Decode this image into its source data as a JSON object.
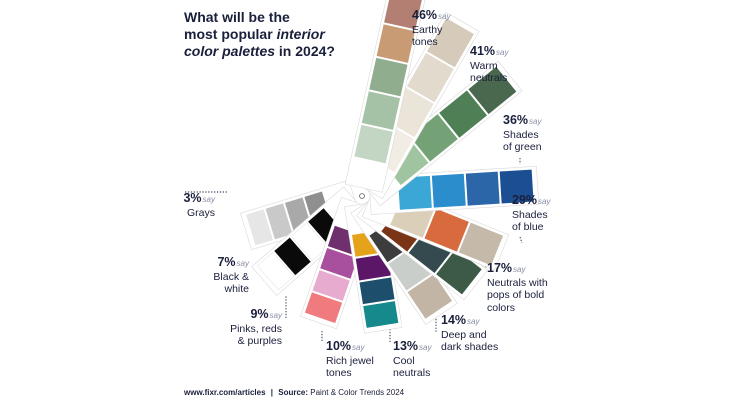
{
  "title": {
    "line1": "What will be the",
    "line2_pre": "most popular ",
    "line2_em": "interior",
    "line3_em": "color palettes",
    "line3_post": " in 2024?"
  },
  "say_word": "say",
  "chart_data": {
    "type": "bar",
    "title": "What will be the most popular interior color palettes in 2024?",
    "unit": "%",
    "categories": [
      "Earthy tones",
      "Warm neutrals",
      "Shades of green",
      "Shades of blue",
      "Neutrals with pops of bold colors",
      "Deep and dark shades",
      "Cool neutrals",
      "Rich jewel tones",
      "Pinks, reds & purples",
      "Black & white",
      "Grays"
    ],
    "values": [
      46,
      41,
      36,
      29,
      17,
      14,
      13,
      10,
      9,
      7,
      3
    ],
    "series": [
      {
        "name": "Earthy tones",
        "label_lines": [
          "Earthy",
          "tones"
        ],
        "pct": "46%",
        "value": 46,
        "colors": [
          "#b27f72",
          "#c99b74",
          "#90ae8e",
          "#a6c2a6",
          "#c3d6c3"
        ]
      },
      {
        "name": "Warm neutrals",
        "label_lines": [
          "Warm",
          "neutrals"
        ],
        "pct": "41%",
        "value": 41,
        "colors": [
          "#d6cbbb",
          "#e2dacd",
          "#ebe4d8",
          "#f1ece4"
        ]
      },
      {
        "name": "Shades of green",
        "label_lines": [
          "Shades",
          "of green"
        ],
        "pct": "36%",
        "value": 36,
        "colors": [
          "#49684e",
          "#4f7f55",
          "#74a276",
          "#a0c4a0"
        ]
      },
      {
        "name": "Shades of blue",
        "label_lines": [
          "Shades",
          "of blue"
        ],
        "pct": "29%",
        "value": 29,
        "colors": [
          "#1b4e93",
          "#2a66a8",
          "#2b8dcc",
          "#3aa7d6"
        ]
      },
      {
        "name": "Neutrals with pops of bold colors",
        "label_lines": [
          "Neutrals with",
          "pops of bold",
          "colors"
        ],
        "pct": "17%",
        "value": 17,
        "colors": [
          "#c5b9a9",
          "#d86b3d",
          "#dccfba"
        ]
      },
      {
        "name": "Deep and dark shades",
        "label_lines": [
          "Deep and",
          "dark shades"
        ],
        "pct": "14%",
        "value": 14,
        "colors": [
          "#3c5a46",
          "#344a4e",
          "#7a3416"
        ]
      },
      {
        "name": "Cool neutrals",
        "label_lines": [
          "Cool",
          "neutrals"
        ],
        "pct": "13%",
        "value": 13,
        "colors": [
          "#c2b5a6",
          "#c9cecb",
          "#3d3d3d"
        ]
      },
      {
        "name": "Rich jewel tones",
        "label_lines": [
          "Rich jewel",
          "tones"
        ],
        "pct": "10%",
        "value": 10,
        "colors": [
          "#15898b",
          "#1d4f6d",
          "#5b1667",
          "#e5a21b"
        ]
      },
      {
        "name": "Pinks, reds & purples",
        "label_lines": [
          "Pinks, reds",
          "& purples"
        ],
        "pct": "9%",
        "value": 9,
        "colors": [
          "#ef7b7f",
          "#e7abcf",
          "#a84f9d",
          "#70306e"
        ]
      },
      {
        "name": "Black & white",
        "label_lines": [
          "Black &",
          "white"
        ],
        "pct": "7%",
        "value": 7,
        "colors": [
          "#ffffff",
          "#0a0a0a",
          "#ffffff",
          "#0a0a0a"
        ]
      },
      {
        "name": "Grays",
        "label_lines": [
          "Grays"
        ],
        "pct": "3%",
        "value": 3,
        "colors": [
          "#e6e6e6",
          "#c9c9c9",
          "#a9a9a9",
          "#8f8f8f"
        ]
      }
    ]
  },
  "footer": {
    "site": "www.fixr.com/articles",
    "separator": "|",
    "source_label": "Source:",
    "source_text": "Paint & Color Trends 2024"
  }
}
